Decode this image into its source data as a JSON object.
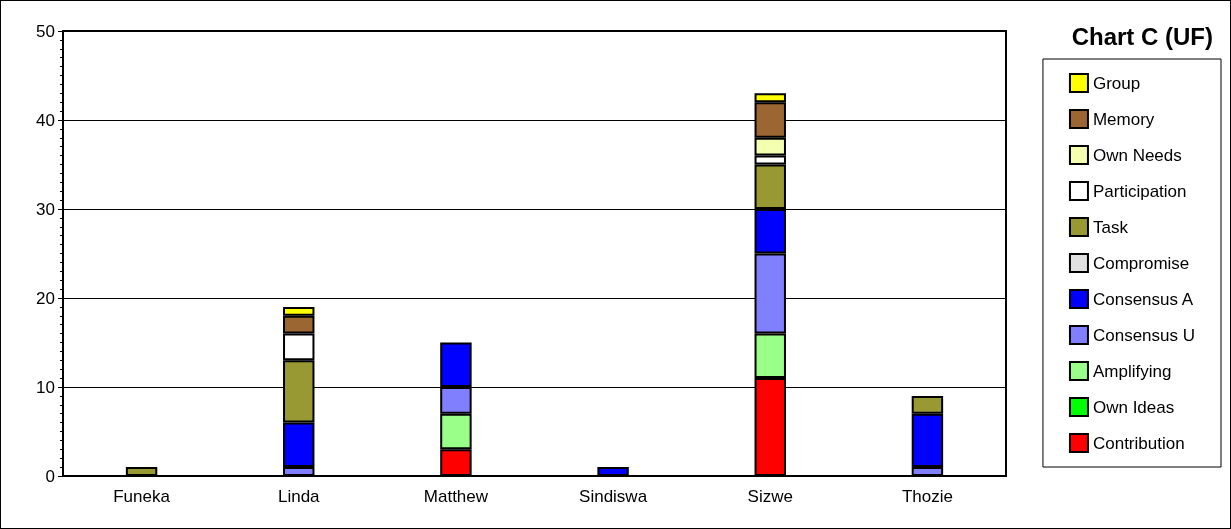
{
  "chart_data": {
    "type": "bar",
    "title": "Chart C (UF)",
    "stacked": true,
    "categories": [
      "Funeka",
      "Linda",
      "Matthew",
      "Sindiswa",
      "Sizwe",
      "Thozie"
    ],
    "series": [
      {
        "name": "Contribution",
        "color": "#ff0000",
        "values": [
          0,
          0,
          3,
          0,
          11,
          0
        ]
      },
      {
        "name": "Own Ideas",
        "color": "#00ff00",
        "values": [
          0,
          0,
          0,
          0,
          0,
          0
        ]
      },
      {
        "name": "Amplifying",
        "color": "#99ff88",
        "values": [
          0,
          0,
          4,
          0,
          5,
          0
        ]
      },
      {
        "name": "Consensus U",
        "color": "#8080ff",
        "values": [
          0,
          1,
          3,
          0,
          9,
          1
        ]
      },
      {
        "name": "Consensus A",
        "color": "#0000ff",
        "values": [
          0,
          5,
          5,
          1,
          5,
          6
        ]
      },
      {
        "name": "Compromise",
        "color": "#e0e0e0",
        "values": [
          0,
          0,
          0,
          0,
          0,
          0
        ]
      },
      {
        "name": "Task",
        "color": "#999933",
        "values": [
          1,
          7,
          0,
          0,
          5,
          2
        ]
      },
      {
        "name": "Participation",
        "color": "#ffffff",
        "values": [
          0,
          3,
          0,
          0,
          1,
          0
        ]
      },
      {
        "name": "Own Needs",
        "color": "#f5ffb0",
        "values": [
          0,
          0,
          0,
          0,
          2,
          0
        ]
      },
      {
        "name": "Memory",
        "color": "#9c6633",
        "values": [
          0,
          2,
          0,
          0,
          4,
          0
        ]
      },
      {
        "name": "Group",
        "color": "#ffff00",
        "values": [
          0,
          1,
          0,
          0,
          1,
          0
        ]
      }
    ],
    "ylim": [
      0,
      50
    ],
    "yticks": [
      0,
      10,
      20,
      30,
      40,
      50
    ],
    "grid": "y",
    "legend": "right"
  }
}
